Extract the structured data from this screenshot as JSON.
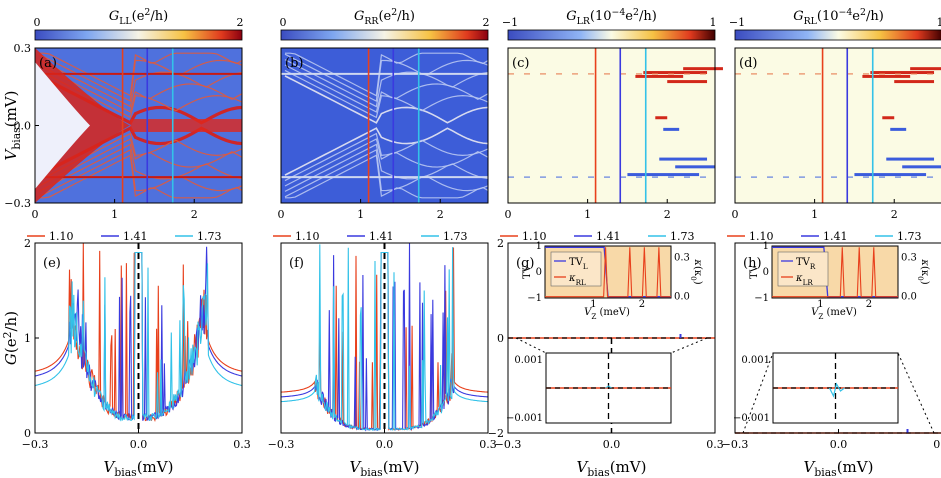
{
  "colors": {
    "red": "#e8401c",
    "blue": "#3a3adf",
    "cyan": "#33c2e8",
    "cmap_low": "#3b4cc0",
    "cmap_mid": "#f7f7e0",
    "cmap_high": "#b40426",
    "inset_bg": "#f8d9a8"
  },
  "icons": [
    "dashed-zoom-lines"
  ],
  "chart_data": [
    {
      "id": "a",
      "type": "heatmap",
      "panel_label": "(a)",
      "title": "G_LL(e^2/h)",
      "colorbar_ticks": [
        "0",
        "2"
      ],
      "colorbar_range": [
        0,
        2
      ],
      "xlim": [
        0,
        2.6
      ],
      "xticks": [
        "0",
        "1",
        "2"
      ],
      "ylim": [
        -0.3,
        0.3
      ],
      "yticks": [
        "-0.3",
        "0.0",
        "0.3"
      ],
      "ylabel": "V_bias(mV)",
      "cut_lines": [
        1.1,
        1.41,
        1.73
      ]
    },
    {
      "id": "b",
      "type": "heatmap",
      "panel_label": "(b)",
      "title": "G_RR(e^2/h)",
      "colorbar_ticks": [
        "0",
        "2"
      ],
      "colorbar_range": [
        0,
        2
      ],
      "xlim": [
        0,
        2.6
      ],
      "xticks": [
        "0",
        "1",
        "2"
      ],
      "cut_lines": [
        1.1,
        1.41,
        1.73
      ]
    },
    {
      "id": "c",
      "type": "heatmap",
      "panel_label": "(c)",
      "title": "G_LR(10^-4 e^2/h)",
      "colorbar_ticks": [
        "-1",
        "1"
      ],
      "colorbar_range": [
        -1,
        1
      ],
      "xlim": [
        0,
        2.6
      ],
      "xticks": [
        "0",
        "1",
        "2"
      ],
      "cut_lines": [
        1.1,
        1.41,
        1.73
      ]
    },
    {
      "id": "d",
      "type": "heatmap",
      "panel_label": "(d)",
      "title": "G_RL(10^-4 e^2/h)",
      "colorbar_ticks": [
        "-1",
        "1"
      ],
      "colorbar_range": [
        -1,
        1
      ],
      "xlim": [
        0,
        2.6
      ],
      "xticks": [
        "0",
        "1",
        "2"
      ],
      "cut_lines": [
        1.1,
        1.41,
        1.73
      ]
    },
    {
      "id": "e",
      "type": "line",
      "panel_label": "(e)",
      "xlim": [
        -0.3,
        0.3
      ],
      "xticks": [
        "-0.3",
        "0.0",
        "0.3"
      ],
      "xlabel": "V_bias(mV)",
      "ylim": [
        0,
        2
      ],
      "yticks": [
        "0",
        "1",
        "2"
      ],
      "ylabel": "G(e^2/h)",
      "series": [
        {
          "name": "1.10",
          "approx_baseline": 0.6,
          "approx_peak": 2.0
        },
        {
          "name": "1.41",
          "approx_baseline": 0.55,
          "approx_peak": 2.0
        },
        {
          "name": "1.73",
          "approx_baseline": 0.45,
          "approx_peak": 2.0
        }
      ]
    },
    {
      "id": "f",
      "type": "line",
      "panel_label": "(f)",
      "xlim": [
        -0.3,
        0.3
      ],
      "xticks": [
        "-0.3",
        "0.0",
        "0.3"
      ],
      "xlabel": "V_bias(mV)",
      "series": [
        {
          "name": "1.10",
          "approx_baseline": 0.4,
          "approx_peak": 2.0
        },
        {
          "name": "1.41",
          "approx_baseline": 0.35,
          "approx_peak": 2.0
        },
        {
          "name": "1.73",
          "approx_baseline": 0.3,
          "approx_peak": 2.0
        }
      ]
    },
    {
      "id": "g",
      "type": "line",
      "panel_label": "(g)",
      "xlim": [
        -0.3,
        0.3
      ],
      "xticks": [
        "-0.3",
        "0.0",
        "0.3"
      ],
      "xlabel": "V_bias(mV)",
      "ylim": [
        -2,
        2
      ],
      "yticks": [
        "-2",
        "0",
        "2"
      ],
      "series": [
        {
          "name": "1.10"
        },
        {
          "name": "1.41"
        },
        {
          "name": "1.73"
        }
      ],
      "inset_top": {
        "legend": [
          "TV_L",
          "κ_RL"
        ],
        "ylabel_left": "TV",
        "ylabel_right": "κ(κ0)",
        "yticks_left": [
          "1",
          "0",
          "-1"
        ],
        "yticks_right": [
          "0.3",
          "0.0"
        ],
        "xticks": [
          "0",
          "1",
          "2"
        ],
        "xlabel": "V_Z (meV)"
      },
      "inset_bottom": {
        "yticks": [
          "0.001",
          "-0.001"
        ]
      }
    },
    {
      "id": "h",
      "type": "line",
      "panel_label": "(h)",
      "xlim": [
        -0.3,
        0.3
      ],
      "xticks": [
        "-0.3",
        "0.0",
        "0.3"
      ],
      "xlabel": "V_bias(mV)",
      "series": [
        {
          "name": "1.10"
        },
        {
          "name": "1.41"
        },
        {
          "name": "1.73"
        }
      ],
      "inset_top": {
        "legend": [
          "TV_R",
          "κ_LR"
        ],
        "ylabel_left": "TV",
        "ylabel_right": "κ(κ0)",
        "yticks_left": [
          "1",
          "0",
          "-1"
        ],
        "yticks_right": [
          "0.3",
          "0.0"
        ],
        "xticks": [
          "0",
          "1",
          "2"
        ],
        "xlabel": "V_Z (meV)"
      },
      "inset_bottom": {
        "yticks": [
          "0.001",
          "-0.001"
        ]
      }
    }
  ]
}
